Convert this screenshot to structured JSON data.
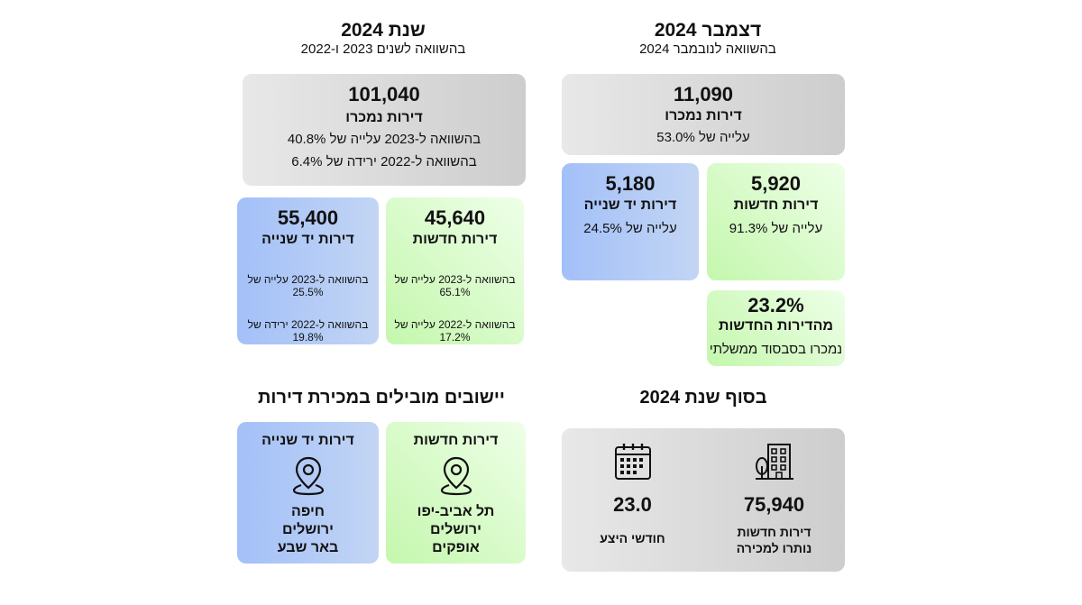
{
  "year": {
    "title": "שנת 2024",
    "subtitle": "בהשוואה לשנים 2023 ו-2022",
    "total": {
      "value": "101,040",
      "label": "דירות נמכרו",
      "line1": "בהשוואה ל-2023 עלייה של 40.8%",
      "line2": "בהשוואה ל-2022 ירידה של 6.4%"
    },
    "second_hand": {
      "value": "55,400",
      "label": "דירות יד שנייה",
      "line1": "בהשוואה ל-2023 עלייה של 25.5%",
      "line2": "בהשוואה ל-2022 ירידה של 19.8%"
    },
    "new": {
      "value": "45,640",
      "label": "דירות חדשות",
      "line1": "בהשוואה ל-2023 עלייה של  65.1%",
      "line2": "בהשוואה ל-2022 עלייה של 17.2%"
    }
  },
  "december": {
    "title": "דצמבר 2024",
    "subtitle": "בהשוואה לנובמבר 2024",
    "total": {
      "value": "11,090",
      "label": "דירות נמכרו",
      "line1": "עלייה של 53.0%"
    },
    "second_hand": {
      "value": "5,180",
      "label": "דירות יד שנייה",
      "line1": "עלייה של 24.5%"
    },
    "new": {
      "value": "5,920",
      "label": "דירות חדשות",
      "line1": "עלייה של 91.3%"
    },
    "subsidy": {
      "value": "23.2%",
      "label": "מהדירות החדשות",
      "line1": "נמכרו בסבסוד ממשלתי"
    }
  },
  "leading": {
    "title": "יישובים מובילים במכירת דירות",
    "second_hand": {
      "label": "דירות יד שנייה",
      "icon": "location-pin-icon",
      "cities": [
        "חיפה",
        "ירושלים",
        "באר שבע"
      ]
    },
    "new": {
      "label": "דירות חדשות",
      "icon": "location-pin-icon",
      "cities": [
        "תל אביב-יפו",
        "ירושלים",
        "אופקים"
      ]
    }
  },
  "year_end": {
    "title": "בסוף שנת 2024",
    "unsold": {
      "icon": "building-icon",
      "value": "75,940",
      "line1": "דירות חדשות",
      "line2": "נותרו למכירה"
    },
    "months": {
      "icon": "calendar-icon",
      "value": "23.0",
      "line1": "חודשי היצע"
    }
  },
  "colors": {
    "gray_card": "#dcdcdc",
    "blue_card": "#a3c0f8",
    "green_card": "#d4f9c4"
  }
}
